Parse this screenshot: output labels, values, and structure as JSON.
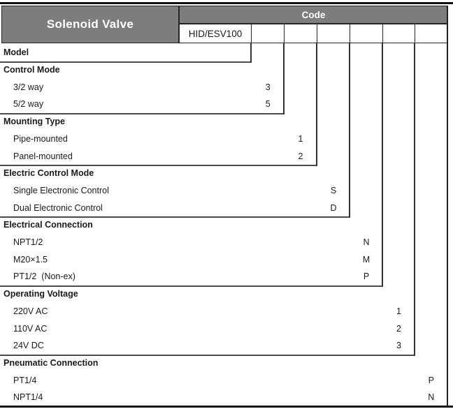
{
  "header": {
    "title": "Solenoid Valve",
    "code_label": "Code",
    "model_code": "HID/ESV100",
    "empty_code_cells": 6
  },
  "sections": [
    {
      "label": "Model",
      "options": []
    },
    {
      "label": "Control Mode",
      "options": [
        {
          "label": "3/2 way",
          "code": "3"
        },
        {
          "label": "5/2 way",
          "code": "5"
        }
      ]
    },
    {
      "label": "Mounting Type",
      "options": [
        {
          "label": "Pipe-mounted",
          "code": "1"
        },
        {
          "label": "Panel-mounted",
          "code": "2"
        }
      ]
    },
    {
      "label": "Electric Control Mode",
      "options": [
        {
          "label": "Single Electronic Control",
          "code": "S"
        },
        {
          "label": "Dual Electronic Control",
          "code": "D"
        }
      ]
    },
    {
      "label": "Electrical Connection",
      "options": [
        {
          "label": "NPT1/2",
          "code": "N"
        },
        {
          "label": "M20×1.5",
          "code": "M"
        },
        {
          "label": "PT1/2  (Non-ex)",
          "code": "P"
        }
      ]
    },
    {
      "label": "Operating Voltage",
      "options": [
        {
          "label": "220V AC",
          "code": "1"
        },
        {
          "label": "110V AC",
          "code": "2"
        },
        {
          "label": "24V DC",
          "code": "3"
        }
      ]
    },
    {
      "label": "Pneumatic Connection",
      "options": [
        {
          "label": "PT1/4",
          "code": "P"
        },
        {
          "label": "NPT1/4",
          "code": "N"
        }
      ]
    }
  ],
  "colors": {
    "header_gray": "#7d7d7d",
    "cell_border": "#262626",
    "vertical_line": "#333333",
    "section_underline": "#4a4a4a",
    "text": "#1a1a1a",
    "header_text": "#ffffff"
  }
}
